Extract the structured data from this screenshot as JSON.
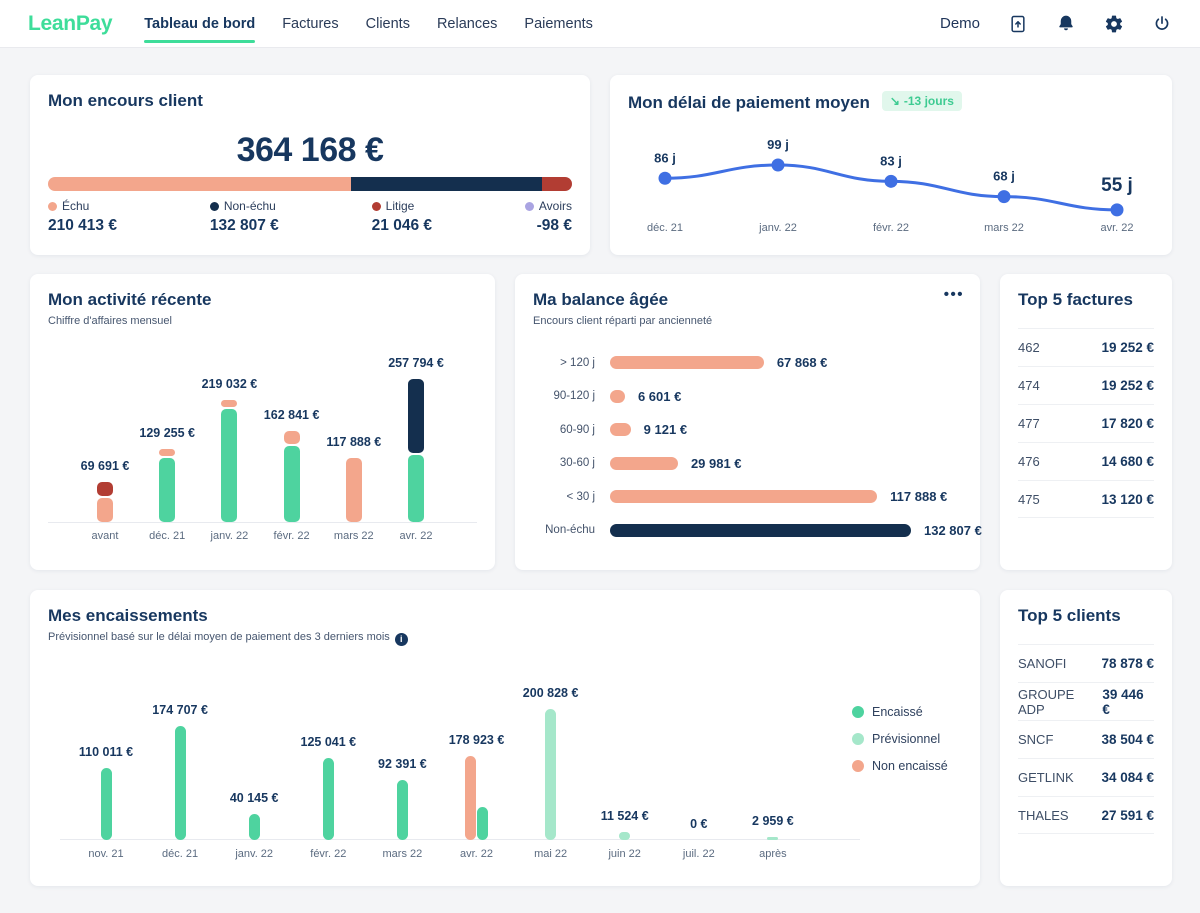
{
  "colors": {
    "brand_green": "#3edd9a",
    "navy": "#17375f",
    "navy_bar": "#142f4e",
    "green": "#4ed39f",
    "light_green": "#a5e7ca",
    "salmon": "#f3a68c",
    "red": "#b23d33",
    "purple": "#aaa4e2",
    "blue": "#3f6fe3",
    "badge_bg": "#e1f7ec",
    "badge_text": "#3ecb92",
    "axis_label": "#5b6b80"
  },
  "nav": {
    "brand": "LeanPay",
    "items": [
      {
        "label": "Tableau de bord",
        "active": true
      },
      {
        "label": "Factures",
        "active": false
      },
      {
        "label": "Clients",
        "active": false
      },
      {
        "label": "Relances",
        "active": false
      },
      {
        "label": "Paiements",
        "active": false
      }
    ],
    "user_label": "Demo",
    "icons": [
      "document-upload-icon",
      "bell-icon",
      "gear-icon",
      "power-icon"
    ]
  },
  "encours": {
    "title": "Mon encours client",
    "total_display": "364 168 €",
    "chart_data": {
      "type": "stacked-bar",
      "segments": [
        {
          "label": "Échu",
          "value": 210413,
          "display": "210 413 €",
          "color_key": "salmon"
        },
        {
          "label": "Non-échu",
          "value": 132807,
          "display": "132 807 €",
          "color_key": "navy_bar"
        },
        {
          "label": "Litige",
          "value": 21046,
          "display": "21 046 €",
          "color_key": "red"
        },
        {
          "label": "Avoirs",
          "value": -98,
          "display": "-98 €",
          "color_key": "purple"
        }
      ]
    }
  },
  "delai": {
    "title": "Mon délai de paiement moyen",
    "badge_icon": "↘",
    "badge_text": "-13 jours",
    "chart_data": {
      "type": "line",
      "x": [
        "déc. 21",
        "janv. 22",
        "févr. 22",
        "mars 22",
        "avr. 22"
      ],
      "values": [
        86,
        99,
        83,
        68,
        55
      ],
      "point_labels": [
        "86 j",
        "99 j",
        "83 j",
        "68 j",
        "55 j"
      ],
      "unit": "jours"
    }
  },
  "activite": {
    "title": "Mon activité récente",
    "subtitle": "Chiffre d'affaires mensuel",
    "chart_data": {
      "type": "stacked-column",
      "categories": [
        "avant",
        "déc. 21",
        "janv. 22",
        "févr. 22",
        "mars 22",
        "avr. 22"
      ],
      "totals": [
        69691,
        129255,
        219032,
        162841,
        117888,
        257794
      ],
      "total_displays": [
        "69 691 €",
        "129 255 €",
        "219 032 €",
        "162 841 €",
        "117 888 €",
        "257 794 €"
      ],
      "stacks": [
        [
          {
            "color_key": "salmon",
            "value": 43191
          },
          {
            "color_key": "red",
            "value": 26500
          }
        ],
        [
          {
            "color_key": "green",
            "value": 117255
          },
          {
            "color_key": "salmon",
            "value": 12000
          }
        ],
        [
          {
            "color_key": "green",
            "value": 207032
          },
          {
            "color_key": "salmon",
            "value": 12000
          }
        ],
        [
          {
            "color_key": "green",
            "value": 139841
          },
          {
            "color_key": "salmon",
            "value": 23000
          }
        ],
        [
          {
            "color_key": "salmon",
            "value": 117888
          }
        ],
        [
          {
            "color_key": "green",
            "value": 122794
          },
          {
            "color_key": "navy_bar",
            "value": 135000
          }
        ]
      ]
    }
  },
  "balance": {
    "title": "Ma balance âgée",
    "subtitle": "Encours client réparti par ancienneté",
    "chart_data": {
      "type": "bar-horizontal",
      "categories": [
        "> 120 j",
        "90-120 j",
        "60-90 j",
        "30-60 j",
        "< 30 j",
        "Non-échu"
      ],
      "values": [
        67868,
        6601,
        9121,
        29981,
        117888,
        132807
      ],
      "displays": [
        "67 868 €",
        "6 601 €",
        "9 121 €",
        "29 981 €",
        "117 888 €",
        "132 807 €"
      ],
      "color_keys": [
        "salmon",
        "salmon",
        "salmon",
        "salmon",
        "salmon",
        "navy_bar"
      ]
    }
  },
  "top_factures": {
    "title": "Top 5 factures",
    "rows": [
      {
        "label": "462",
        "value": "19 252 €"
      },
      {
        "label": "474",
        "value": "19 252 €"
      },
      {
        "label": "477",
        "value": "17 820 €"
      },
      {
        "label": "476",
        "value": "14 680 €"
      },
      {
        "label": "475",
        "value": "13 120 €"
      }
    ]
  },
  "encaissements": {
    "title": "Mes encaissements",
    "subtitle": "Prévisionnel basé sur le délai moyen de paiement des 3 derniers mois",
    "legend": [
      {
        "label": "Encaissé",
        "color_key": "green"
      },
      {
        "label": "Prévisionnel",
        "color_key": "light_green"
      },
      {
        "label": "Non encaissé",
        "color_key": "salmon"
      }
    ],
    "chart_data": {
      "type": "grouped-bar",
      "categories": [
        "nov. 21",
        "déc. 21",
        "janv. 22",
        "févr. 22",
        "mars 22",
        "avr. 22",
        "mai 22",
        "juin 22",
        "juil. 22",
        "après"
      ],
      "displays": [
        "110 011 €",
        "174 707 €",
        "40 145 €",
        "125 041 €",
        "92 391 €",
        "178 923 €",
        "200 828 €",
        "11 524 €",
        "0 €",
        "2 959 €"
      ],
      "groups": [
        [
          {
            "color_key": "green",
            "value": 110011
          }
        ],
        [
          {
            "color_key": "green",
            "value": 174707
          }
        ],
        [
          {
            "color_key": "green",
            "value": 40145
          }
        ],
        [
          {
            "color_key": "green",
            "value": 125041
          }
        ],
        [
          {
            "color_key": "green",
            "value": 92391
          }
        ],
        [
          {
            "color_key": "salmon",
            "value": 128900
          },
          {
            "color_key": "green",
            "value": 50023
          }
        ],
        [
          {
            "color_key": "light_green",
            "value": 200828
          }
        ],
        [
          {
            "color_key": "light_green",
            "value": 11524
          }
        ],
        [],
        [
          {
            "color_key": "light_green",
            "value": 2959
          }
        ]
      ]
    }
  },
  "top_clients": {
    "title": "Top 5 clients",
    "rows": [
      {
        "label": "SANOFI",
        "value": "78 878 €"
      },
      {
        "label": "GROUPE ADP",
        "value": "39 446 €"
      },
      {
        "label": "SNCF",
        "value": "38 504 €"
      },
      {
        "label": "GETLINK",
        "value": "34 084 €"
      },
      {
        "label": "THALES",
        "value": "27 591 €"
      }
    ]
  }
}
